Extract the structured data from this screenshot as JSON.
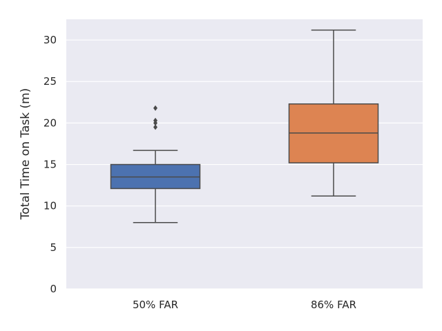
{
  "chart_data": {
    "type": "box",
    "title": "",
    "xlabel": "",
    "ylabel": "Total Time on Task (m)",
    "ylim": [
      0,
      32.5
    ],
    "yticks": [
      0,
      5,
      10,
      15,
      20,
      25,
      30
    ],
    "grid": true,
    "categories": [
      "50% FAR",
      "86% FAR"
    ],
    "boxes": [
      {
        "category": "50% FAR",
        "color": "#4c72b0",
        "whisker_low": 8.0,
        "q1": 12.1,
        "median": 13.5,
        "q3": 15.0,
        "whisker_high": 16.7,
        "outliers": [
          19.5,
          20.0,
          20.3,
          21.8
        ]
      },
      {
        "category": "86% FAR",
        "color": "#dd8452",
        "whisker_low": 11.2,
        "q1": 15.2,
        "median": 18.8,
        "q3": 22.3,
        "whisker_high": 31.2,
        "outliers": []
      }
    ]
  }
}
